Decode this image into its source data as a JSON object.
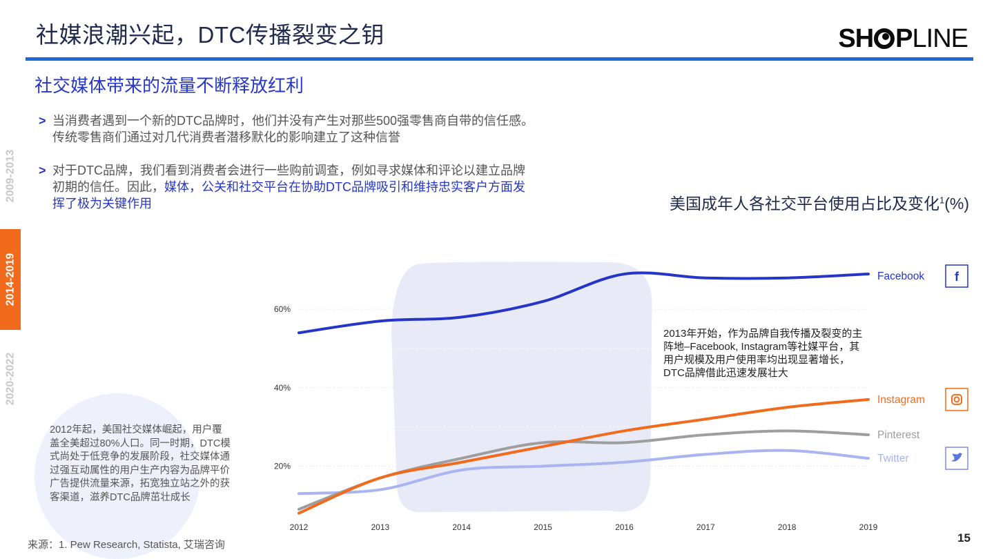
{
  "header": {
    "title": "社媒浪潮兴起，DTC传播裂变之钥",
    "logo": "SHOPLINE"
  },
  "subtitle": "社交媒体带来的流量不断释放红利",
  "bullets": [
    {
      "arrow": ">",
      "text": "当消费者遇到一个新的DTC品牌时，他们并没有产生对那些500强零售商自带的信任感。传统零售商们通过对几代消费者潜移默化的影响建立了这种信誉"
    },
    {
      "arrow": ">",
      "text": "对于DTC品牌，我们看到消费者会进行一些购前调查，例如寻求媒体和评论以建立品牌初期的信任。因此，",
      "highlight": "媒体，公关和社交平台在协助DTC品牌吸引和维持忠实客户方面发挥了极为关键作用"
    }
  ],
  "timeline": [
    "2009-2013",
    "2014-2019",
    "2020-2022"
  ],
  "note": "2012年起，美国社交媒体崛起，用户覆盖全美超过80%人口。同一时期，DTC模式尚处于低竞争的发展阶段，社交媒体通过强互动属性的用户生产内容为品牌平价广告提供流量来源，拓宽独立站之外的获客渠道，滋养DTC品牌茁壮成长",
  "chart_title": {
    "text": "美国成年人各社交平台使用占比及变化",
    "sup": "1",
    "unit": "(%)"
  },
  "annotation": "2013年开始，作为品牌自我传播及裂变的主阵地–Facebook, Instagram等社媒平台，其用户规模及用户使用率均出现显著增长，DTC品牌借此迅速发展壮大",
  "source": "来源：1. Pew Research, Statista, 艾瑞咨询",
  "page_number": "15",
  "colors": {
    "facebook": "#2535c8",
    "instagram": "#f26b1d",
    "pinterest": "#9e9e9e",
    "twitter": "#a9b4f0",
    "highlight_band": "#e8eaf8",
    "accent": "#1a6bd8"
  },
  "chart_data": {
    "type": "line",
    "x": [
      "2012",
      "2013",
      "2014",
      "2015",
      "2016",
      "2017",
      "2018",
      "2019"
    ],
    "ylim": [
      6,
      72
    ],
    "yticks": [
      "60%",
      "40%",
      "20%"
    ],
    "ytick_values": [
      60,
      40,
      20
    ],
    "highlight_range": [
      "2013",
      "2016"
    ],
    "series": [
      {
        "name": "Facebook",
        "icon": "facebook-icon",
        "values": [
          54,
          57,
          58,
          62,
          69,
          68,
          68,
          69
        ]
      },
      {
        "name": "Instagram",
        "icon": "instagram-icon",
        "values": [
          8,
          17,
          21,
          25,
          29,
          32,
          35,
          37
        ]
      },
      {
        "name": "Pinterest",
        "icon": "pinterest-icon",
        "values": [
          9,
          17,
          22,
          26,
          26,
          28,
          29,
          28
        ]
      },
      {
        "name": "Twitter",
        "icon": "twitter-icon",
        "values": [
          13,
          14,
          19,
          20,
          21,
          23,
          24,
          22
        ]
      }
    ]
  }
}
